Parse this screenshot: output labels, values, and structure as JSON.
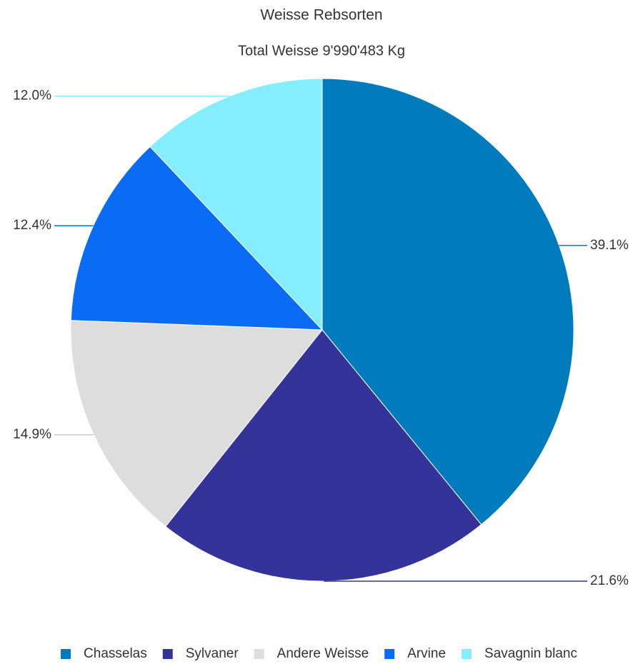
{
  "chart_data": {
    "type": "pie",
    "title": "Weisse Rebsorten",
    "subtitle": "Total Weisse 9'990'483 Kg",
    "categories": [
      "Chasselas",
      "Sylvaner",
      "Andere Weisse",
      "Arvine",
      "Savagnin blanc"
    ],
    "values": [
      39.1,
      21.6,
      14.9,
      12.4,
      12.0
    ],
    "value_labels": [
      "39.1%",
      "21.6%",
      "14.9%",
      "12.4%",
      "12.0%"
    ],
    "colors": [
      "#007bbd",
      "#333399",
      "#dddddd",
      "#0a6cf5",
      "#84eeff"
    ],
    "legend": "bottom"
  }
}
